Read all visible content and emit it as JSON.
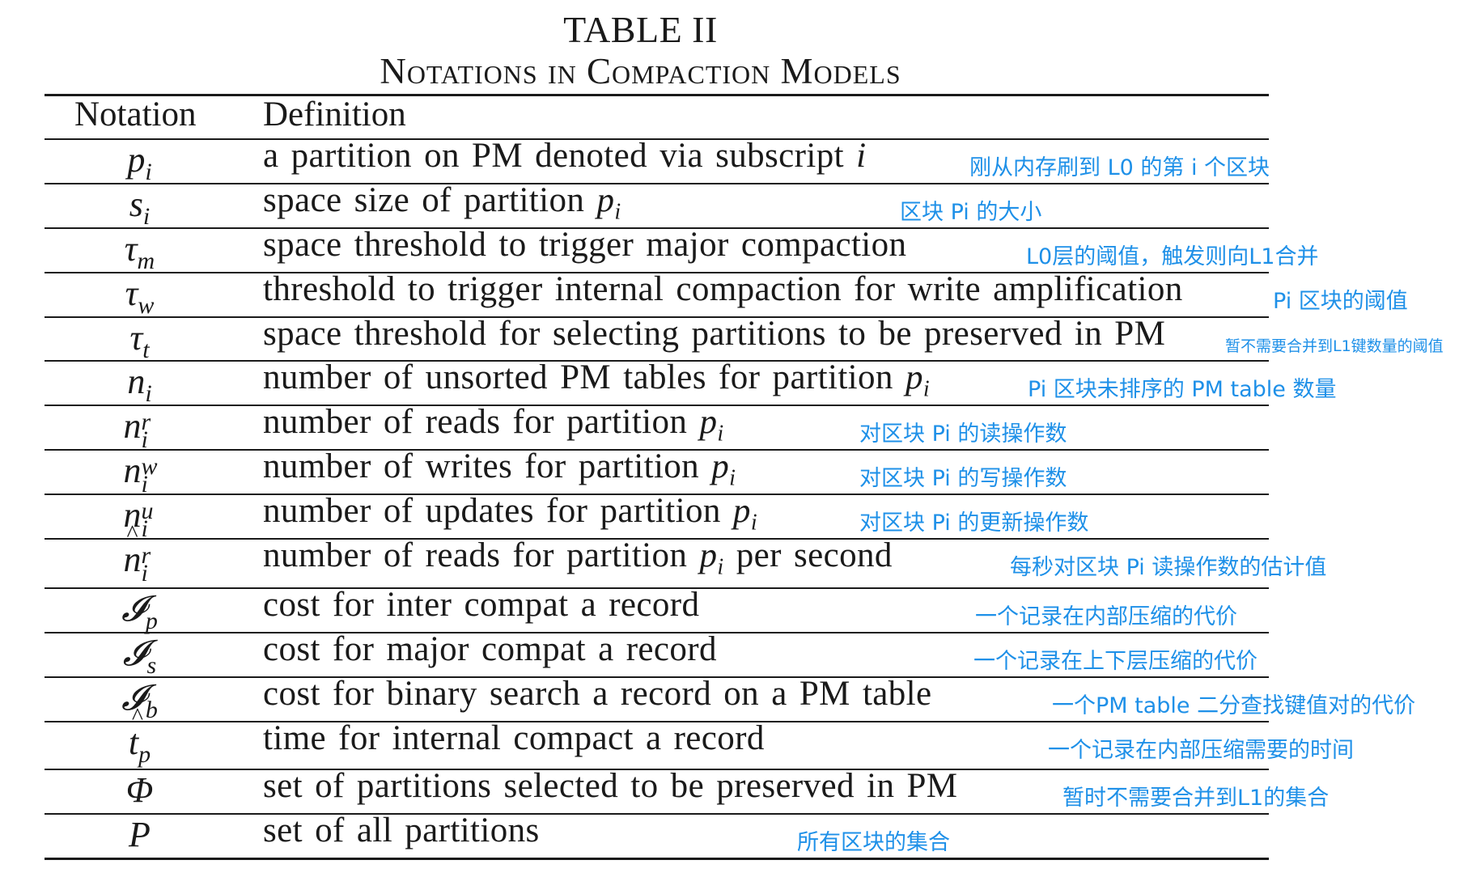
{
  "title": "TABLE II",
  "subtitle": "Notations in Compaction Models",
  "header": {
    "notation": "Notation",
    "definition": "Definition"
  },
  "rows": [
    {
      "sym": "p",
      "sub": "i",
      "sup": "",
      "accent": "",
      "pre": "a partition on PM denoted via subscript ",
      "var": "i",
      "vsub": "",
      "post": "",
      "note": "刚从内存刷到 L0 的第 i 个区块",
      "note_small": false
    },
    {
      "sym": "s",
      "sub": "i",
      "sup": "",
      "accent": "",
      "pre": "space size of partition ",
      "var": "p",
      "vsub": "i",
      "post": "",
      "note": "区块 Pi 的大小",
      "note_small": false
    },
    {
      "sym": "τ",
      "sub": "m",
      "sup": "",
      "accent": "",
      "pre": "space threshold to trigger major compaction",
      "var": "",
      "vsub": "",
      "post": "",
      "note": "L0层的阈值，触发则向L1合并",
      "note_small": false
    },
    {
      "sym": "τ",
      "sub": "w",
      "sup": "",
      "accent": "",
      "pre": "threshold to trigger internal compaction for write amplification",
      "var": "",
      "vsub": "",
      "post": "",
      "note": "Pi 区块的阈值",
      "note_small": false
    },
    {
      "sym": "τ",
      "sub": "t",
      "sup": "",
      "accent": "",
      "pre": "space threshold for selecting partitions to be preserved in PM",
      "var": "",
      "vsub": "",
      "post": "",
      "note": "暂不需要合并到L1键数量的阈值",
      "note_small": true
    },
    {
      "sym": "n",
      "sub": "i",
      "sup": "",
      "accent": "",
      "pre": "number of unsorted PM tables for partition ",
      "var": "p",
      "vsub": "i",
      "post": "",
      "note": "Pi 区块未排序的 PM table 数量",
      "note_small": false
    },
    {
      "sym": "n",
      "sub": "i",
      "sup": "r",
      "accent": "",
      "pre": "number of reads for partition ",
      "var": "p",
      "vsub": "i",
      "post": "",
      "note": "对区块 Pi 的读操作数",
      "note_small": false
    },
    {
      "sym": "n",
      "sub": "i",
      "sup": "w",
      "accent": "",
      "pre": "number of writes for partition ",
      "var": "p",
      "vsub": "i",
      "post": "",
      "note": "对区块 Pi 的写操作数",
      "note_small": false
    },
    {
      "sym": "n",
      "sub": "i",
      "sup": "u",
      "accent": "",
      "pre": "number of updates for partition ",
      "var": "p",
      "vsub": "i",
      "post": "",
      "note": "对区块 Pi 的更新操作数",
      "note_small": false
    },
    {
      "sym": "n",
      "sub": "i",
      "sup": "r",
      "accent": "^",
      "pre": "number of reads for partition ",
      "var": "p",
      "vsub": "i",
      "post": " per second",
      "note": "每秒对区块 Pi 读操作数的估计值",
      "note_small": false
    },
    {
      "sym": "𝓘",
      "sub": "p",
      "sup": "",
      "accent": "",
      "pre": "cost for inter compat a record",
      "var": "",
      "vsub": "",
      "post": "",
      "note": "一个记录在内部压缩的代价",
      "note_small": false
    },
    {
      "sym": "𝓘",
      "sub": "s",
      "sup": "",
      "accent": "",
      "pre": "cost for major compat a record",
      "var": "",
      "vsub": "",
      "post": "",
      "note": "一个记录在上下层压缩的代价",
      "note_small": false
    },
    {
      "sym": "𝓘",
      "sub": "b",
      "sup": "",
      "accent": "",
      "pre": "cost for binary search a record on a PM table",
      "var": "",
      "vsub": "",
      "post": "",
      "note": "一个PM table 二分查找键值对的代价",
      "note_small": false
    },
    {
      "sym": "t",
      "sub": "p",
      "sup": "",
      "accent": "^",
      "pre": "time for internal compact a record",
      "var": "",
      "vsub": "",
      "post": "",
      "note": "一个记录在内部压缩需要的时间",
      "note_small": false
    },
    {
      "sym": "Φ",
      "sub": "",
      "sup": "",
      "accent": "",
      "pre": "set of partitions selected to be preserved in PM",
      "var": "",
      "vsub": "",
      "post": "",
      "note": "暂时不需要合并到L1的集合",
      "note_small": false
    },
    {
      "sym": "P",
      "sub": "",
      "sup": "",
      "accent": "",
      "pre": "set of all partitions",
      "var": "",
      "vsub": "",
      "post": "",
      "note": "所有区块的集合",
      "note_small": false
    }
  ]
}
